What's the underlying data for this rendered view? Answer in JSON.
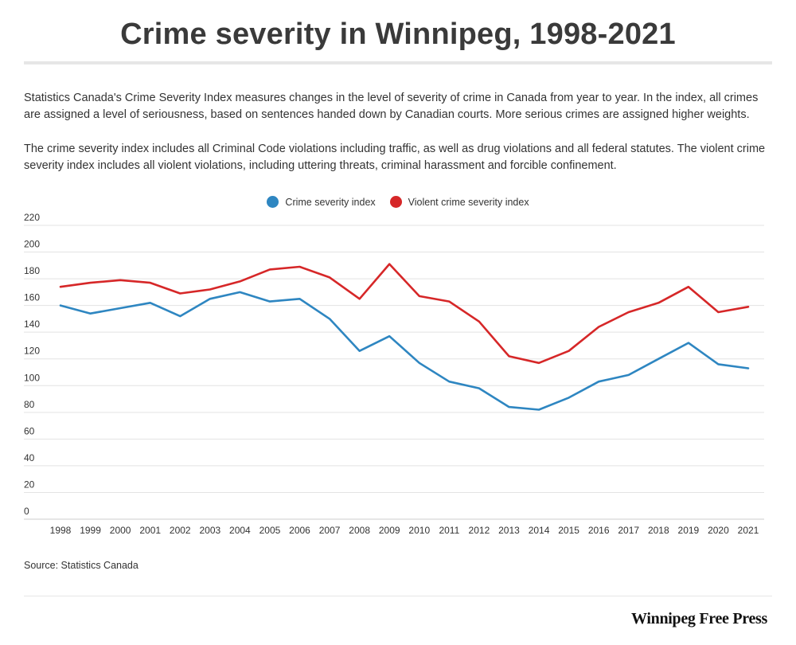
{
  "header": {
    "title": "Crime severity in Winnipeg, 1998-2021",
    "description_1": "Statistics Canada's Crime Severity Index measures changes in the level of severity of crime in Canada from year to year. In the index, all crimes are assigned a level of seriousness, based on sentences handed down by Canadian courts. More serious crimes are assigned higher weights.",
    "description_2": "The crime severity index includes all Criminal Code violations including traffic, as well as drug violations and all federal statutes. The violent crime severity index includes all violent violations, including uttering threats, criminal harassment and forcible confinement."
  },
  "footer": {
    "source": "Source: Statistics Canada",
    "brand": "Winnipeg Free Press"
  },
  "chart_data": {
    "type": "line",
    "title": "Crime severity in Winnipeg, 1998-2021",
    "xlabel": "",
    "ylabel": "",
    "ylim": [
      0,
      220
    ],
    "yticks": [
      0,
      20,
      40,
      60,
      80,
      100,
      120,
      140,
      160,
      180,
      200,
      220
    ],
    "grid": true,
    "legend_position": "top-center",
    "x": [
      "1998",
      "1999",
      "2000",
      "2001",
      "2002",
      "2003",
      "2004",
      "2005",
      "2006",
      "2007",
      "2008",
      "2009",
      "2010",
      "2011",
      "2012",
      "2013",
      "2014",
      "2015",
      "2016",
      "2017",
      "2018",
      "2019",
      "2020",
      "2021"
    ],
    "series": [
      {
        "name": "Crime severity index",
        "color": "#2e86c1",
        "values": [
          160,
          154,
          158,
          162,
          152,
          165,
          170,
          163,
          165,
          150,
          126,
          137,
          117,
          103,
          98,
          84,
          82,
          91,
          103,
          108,
          120,
          132,
          116,
          113
        ]
      },
      {
        "name": "Violent crime severity index",
        "color": "#d62728",
        "values": [
          174,
          177,
          179,
          177,
          169,
          172,
          178,
          187,
          189,
          181,
          165,
          191,
          167,
          163,
          148,
          122,
          117,
          126,
          144,
          155,
          162,
          174,
          155,
          159
        ]
      }
    ]
  }
}
